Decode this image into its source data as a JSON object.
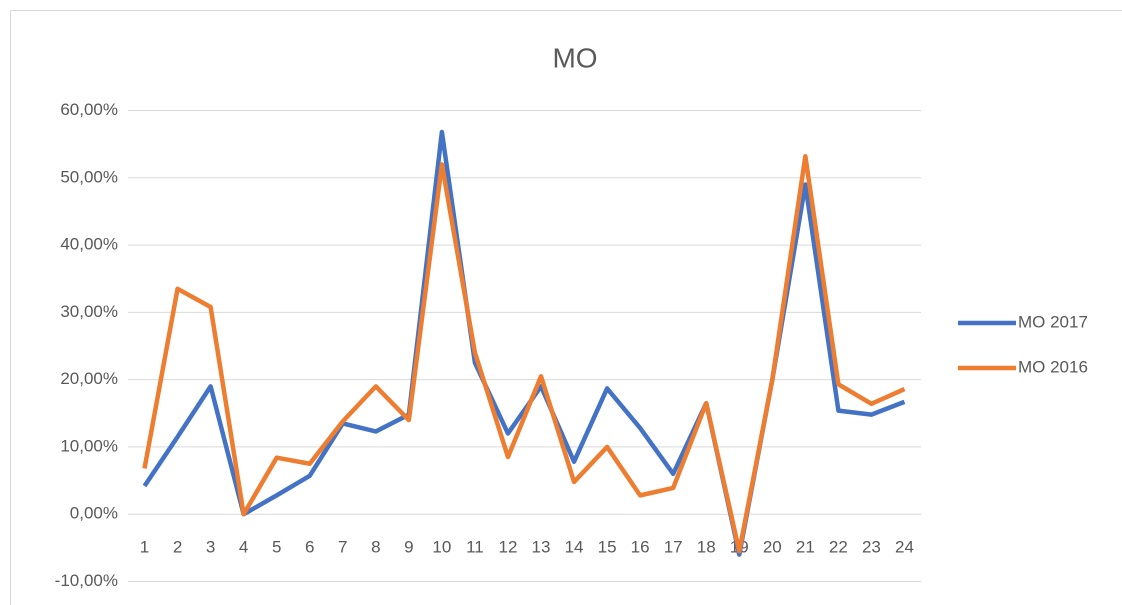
{
  "chart_data": {
    "type": "line",
    "title": "MO",
    "categories": [
      "1",
      "2",
      "3",
      "4",
      "5",
      "6",
      "7",
      "8",
      "9",
      "10",
      "11",
      "12",
      "13",
      "14",
      "15",
      "16",
      "17",
      "18",
      "19",
      "20",
      "21",
      "22",
      "23",
      "24"
    ],
    "series": [
      {
        "name": "MO 2017",
        "color": "#4472c4",
        "values": [
          4.2,
          11.5,
          19,
          0,
          2.8,
          5.7,
          13.5,
          12.3,
          14.8,
          56.8,
          22.5,
          12,
          19,
          7.8,
          18.7,
          12.8,
          6,
          16.5,
          -6,
          20,
          49,
          15.4,
          14.8,
          16.7
        ]
      },
      {
        "name": "MO 2016",
        "color": "#ed7d31",
        "values": [
          6.8,
          33.5,
          30.8,
          0,
          8.4,
          7.5,
          13.8,
          19,
          14,
          52,
          24,
          8.5,
          20.5,
          4.8,
          10,
          2.8,
          3.9,
          16.5,
          -5.5,
          20,
          53.2,
          19.3,
          16.4,
          18.6
        ]
      }
    ],
    "ylim": [
      -10,
      60
    ],
    "yticks": [
      {
        "value": -10,
        "label": "-10,00%"
      },
      {
        "value": 0,
        "label": "0,00%"
      },
      {
        "value": 10,
        "label": "10,00%"
      },
      {
        "value": 20,
        "label": "20,00%"
      },
      {
        "value": 30,
        "label": "30,00%"
      },
      {
        "value": 40,
        "label": "40,00%"
      },
      {
        "value": 50,
        "label": "50,00%"
      },
      {
        "value": 60,
        "label": "60,00%"
      }
    ],
    "grid": true,
    "legend": "right"
  }
}
